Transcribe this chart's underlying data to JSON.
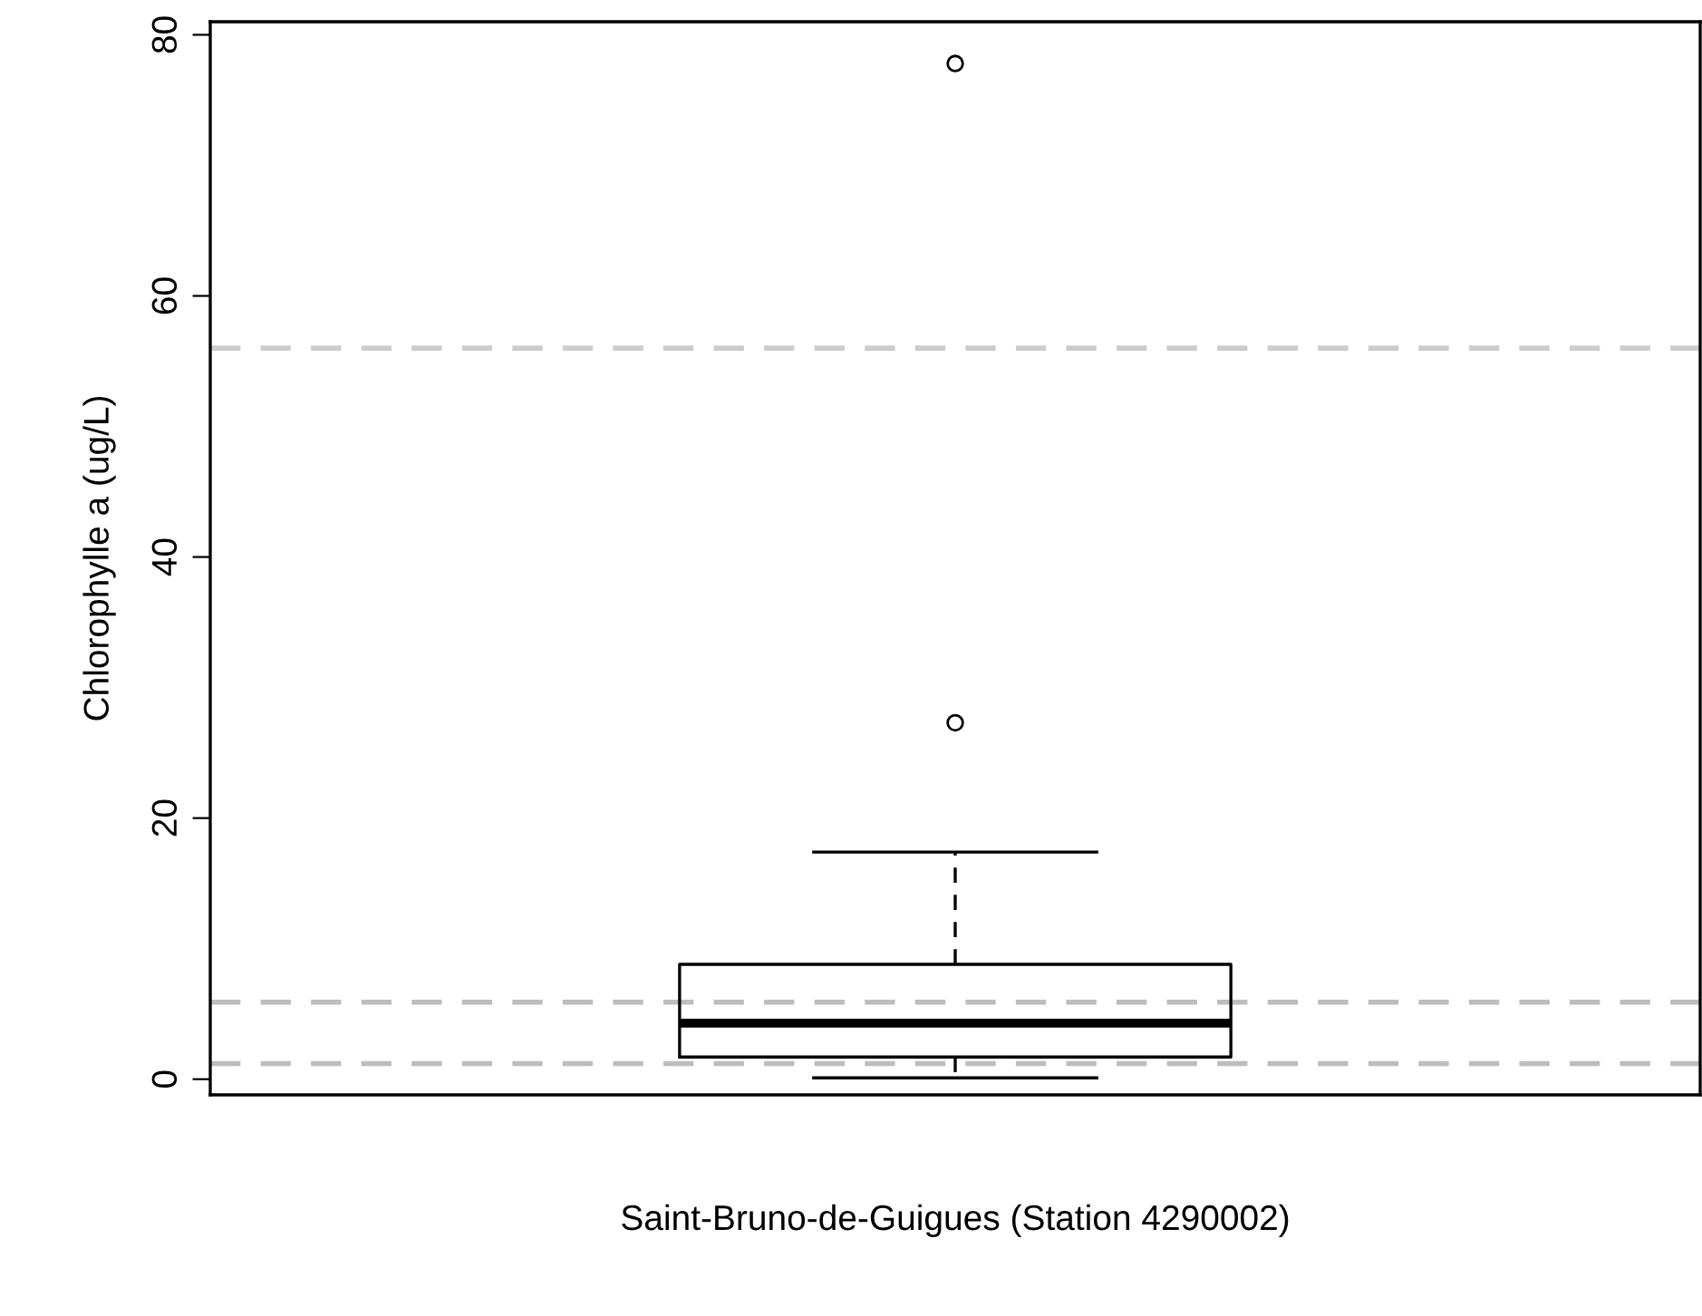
{
  "chart_data": {
    "type": "box",
    "xlabel": "Saint-Bruno-de-Guigues (Station 4290002)",
    "ylabel": "Chlorophylle a (ug/L)",
    "categories": [
      null
    ],
    "boxes": [
      {
        "low": 0.1,
        "q1": 1.7,
        "median": 4.3,
        "q3": 8.8,
        "high": 17.4,
        "outliers": [
          77.8,
          27.3
        ]
      }
    ],
    "ylim": [
      -1.2,
      81
    ],
    "yticks": [
      0,
      20,
      40,
      60,
      80
    ],
    "grid": false,
    "legend": false,
    "ref_lines": [
      {
        "axis": "y",
        "value": 56,
        "color": "#cccccc",
        "line_style": "dashed"
      },
      {
        "axis": "y",
        "value": 5.9,
        "color": "#bdbdbd",
        "line_style": "dashed"
      },
      {
        "axis": "y",
        "value": 1.2,
        "color": "#bdbdbd",
        "line_style": "dashed"
      }
    ]
  }
}
